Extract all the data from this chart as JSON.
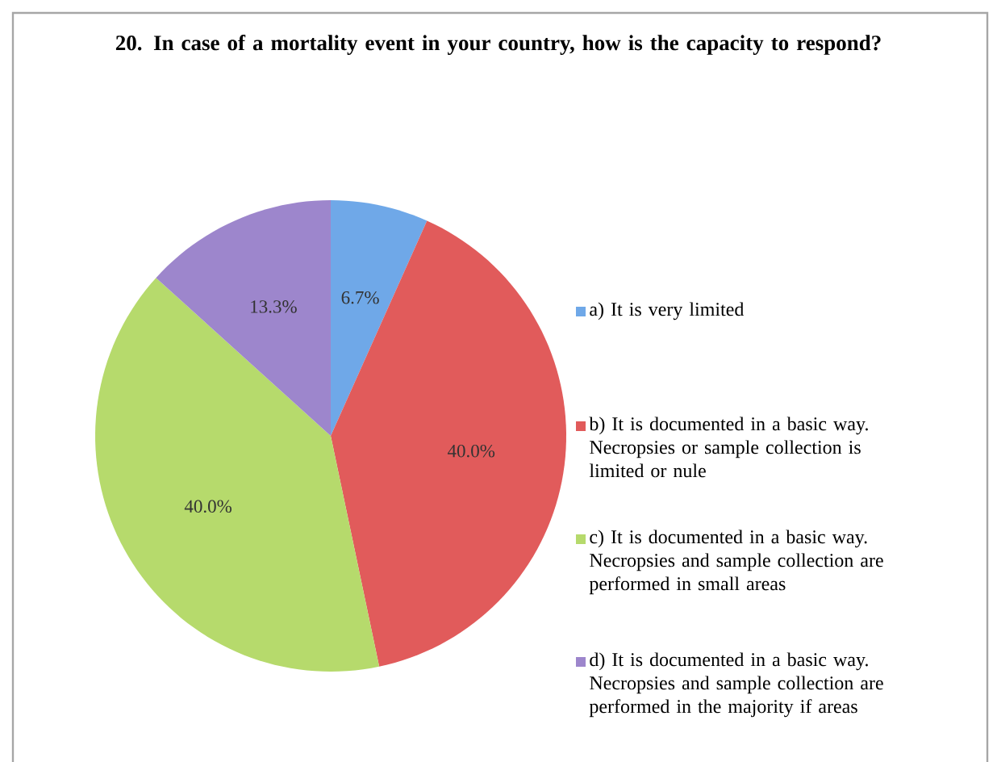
{
  "chart_data": {
    "type": "pie",
    "title": "20. In case of a mortality event in your country, how is the capacity to respond?",
    "categories": [
      "a) It is very limited",
      "b) It is documented in a basic way. Necropsies or sample collection is limited or nule",
      "c) It is documented in a basic way. Necropsies and sample collection are performed in small areas",
      "d) It is documented in a basic way. Necropsies and sample collection are performed in the majority if areas"
    ],
    "values": [
      6.7,
      40.0,
      40.0,
      13.3
    ],
    "value_labels": [
      "6.7%",
      "40.0%",
      "40.0%",
      "13.3%"
    ],
    "colors": [
      "#6fa8e8",
      "#e15b5b",
      "#b6da6c",
      "#9d86cc"
    ],
    "legend": "right"
  }
}
